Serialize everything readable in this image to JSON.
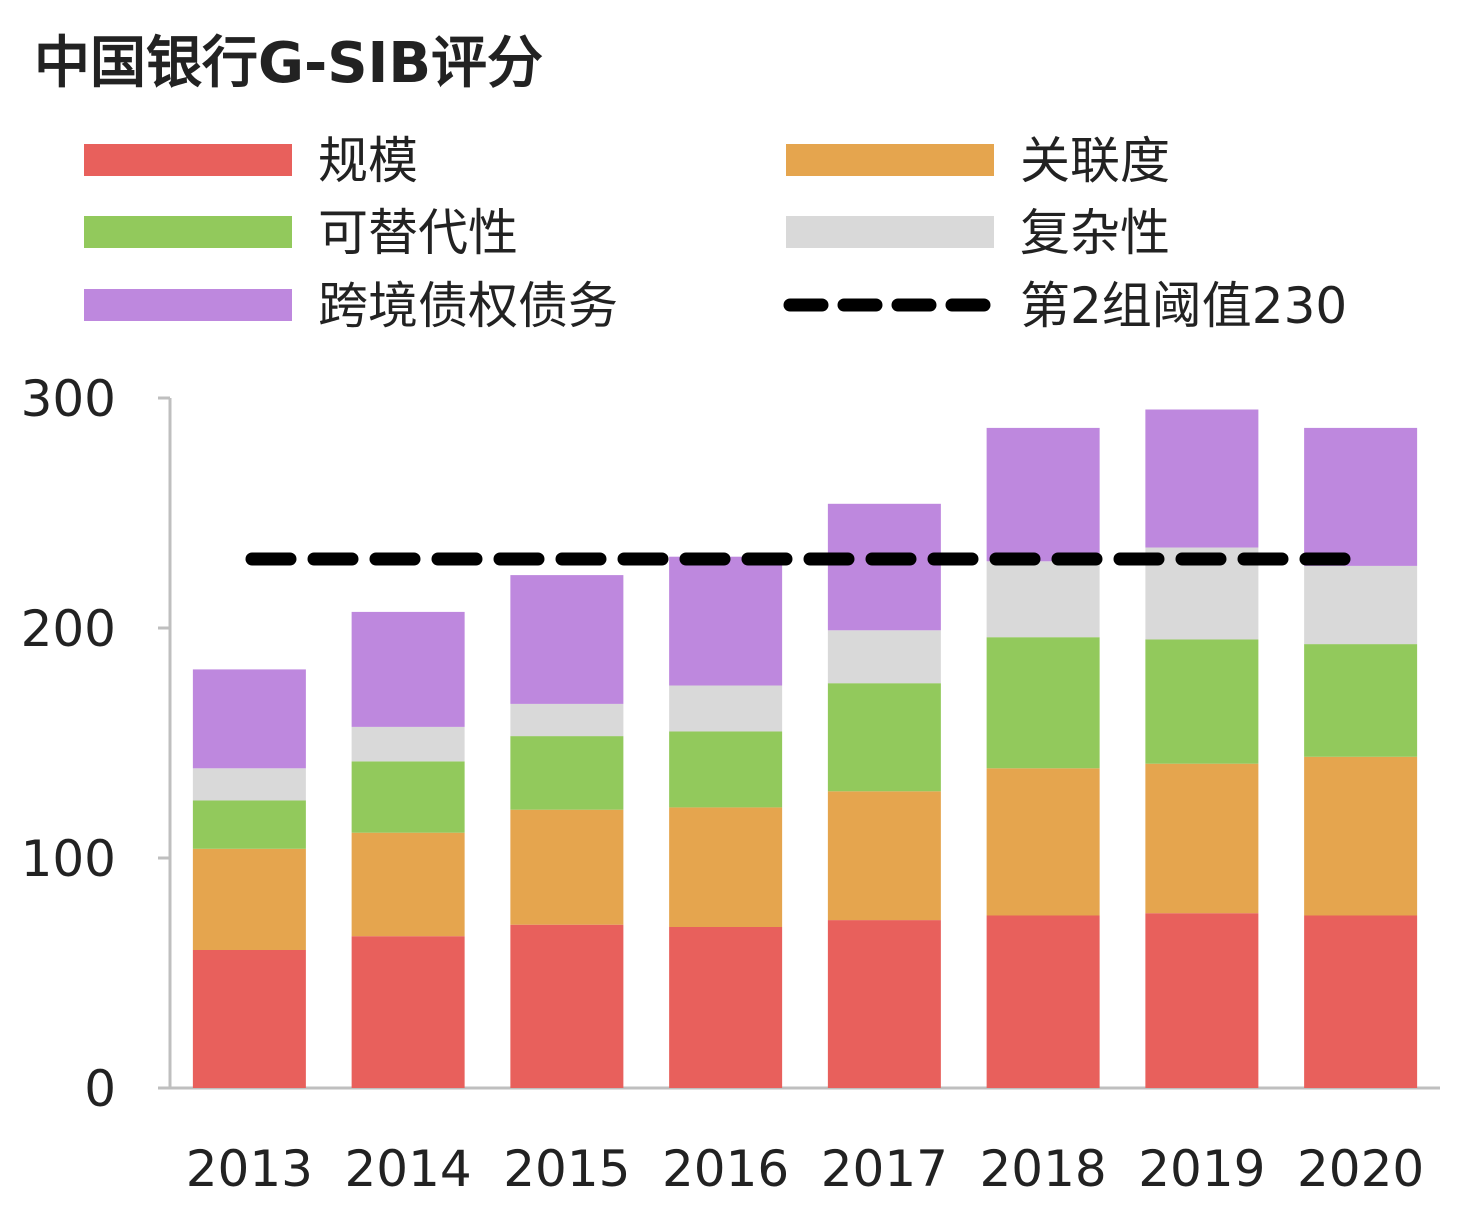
{
  "chart_data": {
    "type": "bar",
    "stacked": true,
    "title": "中国银行G-SIB评分",
    "categories": [
      "2013",
      "2014",
      "2015",
      "2016",
      "2017",
      "2018",
      "2019",
      "2020"
    ],
    "series": [
      {
        "name": "规模",
        "color": "#E8605C",
        "values": [
          60,
          66,
          71,
          70,
          73,
          75,
          76,
          75
        ]
      },
      {
        "name": "关联度",
        "color": "#E5A54E",
        "values": [
          44,
          45,
          50,
          52,
          56,
          64,
          65,
          69
        ]
      },
      {
        "name": "可替代性",
        "color": "#92C95C",
        "values": [
          21,
          31,
          32,
          33,
          47,
          57,
          54,
          49
        ]
      },
      {
        "name": "复杂性",
        "color": "#D9D9D9",
        "values": [
          14,
          15,
          14,
          20,
          23,
          33,
          40,
          34
        ]
      },
      {
        "name": "跨境债权债务",
        "color": "#BE88DE",
        "values": [
          43,
          50,
          56,
          56,
          55,
          58,
          60,
          60
        ]
      }
    ],
    "threshold": {
      "name": "第2组阈值230",
      "value": 230,
      "color": "#000000",
      "style": "dashed"
    },
    "ylim": [
      0,
      300
    ],
    "yticks": [
      "0",
      "100",
      "200",
      "300"
    ],
    "xlabel": "",
    "ylabel": "",
    "grid": false,
    "legend": "top, two columns"
  }
}
